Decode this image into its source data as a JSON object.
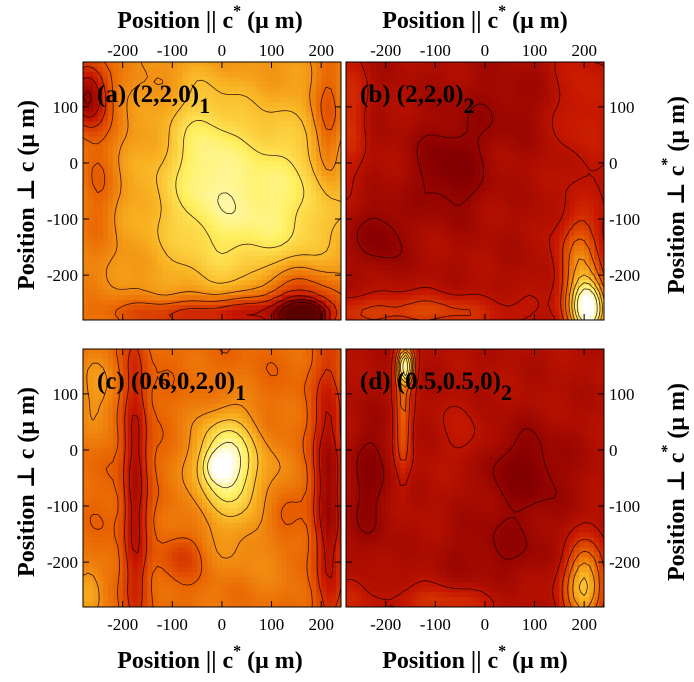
{
  "chart_data": {
    "type": "heatmap",
    "figure": "2x2 contour maps of diffraction intensity vs. position",
    "axes": {
      "x_title_prefix": "Position || c",
      "x_title_sup": "*",
      "x_title_suffix": " (μ m)",
      "y_left_title": "Position ⊥ c  (μ m)",
      "y_right_title_prefix": "Position ⊥ c",
      "y_right_title_sup": "*",
      "y_right_title_suffix": " (μ m)",
      "xlim": [
        -280,
        240
      ],
      "ylim": [
        -280,
        180
      ],
      "x_ticks": [
        -200,
        -100,
        0,
        100,
        200
      ],
      "x_tick_labels": [
        "-200",
        "-100",
        "0",
        "100",
        "200"
      ],
      "y_ticks": [
        100,
        0,
        -100,
        -200
      ],
      "y_tick_labels": [
        "100",
        "0",
        "-100",
        "-200"
      ]
    },
    "colormap": {
      "name": "hot (dark red → red → orange → yellow → white)",
      "stops": [
        "#5a0000",
        "#8a0000",
        "#c81800",
        "#e86000",
        "#f8b020",
        "#fff060",
        "#ffffff"
      ]
    },
    "panels": [
      {
        "id": "a",
        "label": "(a) (2,2,0)",
        "subscript": "1",
        "position": "top-left",
        "base": 0.58,
        "features": [
          {
            "x": 60,
            "y": -70,
            "sx": 200,
            "sy": 170,
            "amp": 0.3
          },
          {
            "x": -40,
            "y": 40,
            "sx": 60,
            "sy": 120,
            "amp": 0.12
          },
          {
            "x": 165,
            "y": -275,
            "sx": 40,
            "sy": 25,
            "amp": -0.75
          },
          {
            "x": 150,
            "y": -240,
            "sx": 90,
            "sy": 60,
            "amp": -0.25
          },
          {
            "x": -270,
            "y": 120,
            "sx": 40,
            "sy": 60,
            "amp": -0.4
          },
          {
            "x": -250,
            "y": -40,
            "sx": 40,
            "sy": 120,
            "amp": -0.1
          },
          {
            "x": 0,
            "y": -270,
            "sx": 200,
            "sy": 30,
            "amp": -0.3
          },
          {
            "x": 215,
            "y": 60,
            "sx": 30,
            "sy": 120,
            "amp": -0.18
          }
        ]
      },
      {
        "id": "b",
        "label": "(b) (2,2,0)",
        "subscript": "2",
        "position": "top-right",
        "base": 0.26,
        "features": [
          {
            "x": -70,
            "y": -10,
            "sx": 70,
            "sy": 80,
            "amp": -0.12
          },
          {
            "x": -210,
            "y": -130,
            "sx": 50,
            "sy": 60,
            "amp": -0.1
          },
          {
            "x": 40,
            "y": 100,
            "sx": 90,
            "sy": 70,
            "amp": -0.05
          },
          {
            "x": 210,
            "y": -260,
            "sx": 35,
            "sy": 50,
            "amp": 0.75
          },
          {
            "x": 190,
            "y": -180,
            "sx": 40,
            "sy": 90,
            "amp": 0.3
          },
          {
            "x": -150,
            "y": -265,
            "sx": 200,
            "sy": 30,
            "amp": 0.18
          },
          {
            "x": -270,
            "y": 80,
            "sx": 30,
            "sy": 120,
            "amp": 0.12
          },
          {
            "x": 200,
            "y": 100,
            "sx": 60,
            "sy": 120,
            "amp": 0.1
          }
        ]
      },
      {
        "id": "c",
        "label": "(c) (0.6,0,2,0)",
        "subscript": "1",
        "position": "bottom-left",
        "base": 0.52,
        "features": [
          {
            "x": 10,
            "y": -20,
            "sx": 60,
            "sy": 80,
            "amp": 0.4
          },
          {
            "x": -10,
            "y": -30,
            "sx": 25,
            "sy": 25,
            "amp": 0.2
          },
          {
            "x": 60,
            "y": -120,
            "sx": 120,
            "sy": 120,
            "amp": 0.1
          },
          {
            "x": -175,
            "y": -50,
            "sx": 25,
            "sy": 260,
            "amp": -0.28
          },
          {
            "x": 215,
            "y": -80,
            "sx": 30,
            "sy": 220,
            "amp": -0.35
          },
          {
            "x": -80,
            "y": -190,
            "sx": 40,
            "sy": 40,
            "amp": -0.12
          },
          {
            "x": 120,
            "y": -120,
            "sx": 40,
            "sy": 50,
            "amp": -0.12
          },
          {
            "x": -270,
            "y": -250,
            "sx": 30,
            "sy": 50,
            "amp": 0.15
          },
          {
            "x": -250,
            "y": 100,
            "sx": 40,
            "sy": 80,
            "amp": 0.1
          }
        ]
      },
      {
        "id": "d",
        "label": "(d) (0.5,0.5,0)",
        "subscript": "2",
        "position": "bottom-right",
        "base": 0.27,
        "features": [
          {
            "x": -160,
            "y": 150,
            "sx": 15,
            "sy": 30,
            "amp": 0.7
          },
          {
            "x": -165,
            "y": 60,
            "sx": 15,
            "sy": 100,
            "amp": 0.25
          },
          {
            "x": 80,
            "y": -40,
            "sx": 90,
            "sy": 80,
            "amp": -0.12
          },
          {
            "x": -230,
            "y": -60,
            "sx": 40,
            "sy": 120,
            "amp": -0.1
          },
          {
            "x": 30,
            "y": -180,
            "sx": 120,
            "sy": 60,
            "amp": -0.07
          },
          {
            "x": 200,
            "y": -240,
            "sx": 40,
            "sy": 70,
            "amp": 0.45
          },
          {
            "x": -90,
            "y": -270,
            "sx": 110,
            "sy": 25,
            "amp": 0.12
          },
          {
            "x": -270,
            "y": -260,
            "sx": 30,
            "sy": 40,
            "amp": 0.1
          },
          {
            "x": -40,
            "y": 20,
            "sx": 40,
            "sy": 60,
            "amp": 0.06
          }
        ]
      }
    ]
  }
}
